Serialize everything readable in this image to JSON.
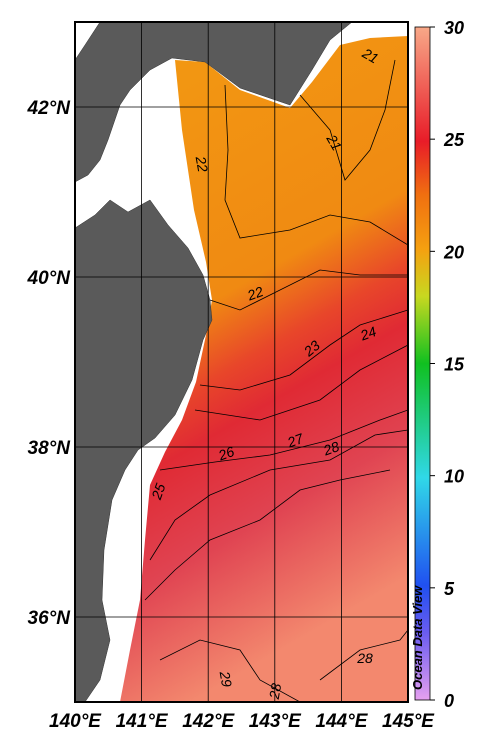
{
  "map": {
    "lon_range": [
      140,
      145
    ],
    "lat_range": [
      35,
      43
    ],
    "xticks": [
      {
        "value": 140,
        "label": "140°E"
      },
      {
        "value": 141,
        "label": "141°E"
      },
      {
        "value": 142,
        "label": "142°E"
      },
      {
        "value": 143,
        "label": "143°E"
      },
      {
        "value": 144,
        "label": "144°E"
      },
      {
        "value": 145,
        "label": "145°E"
      }
    ],
    "yticks": [
      {
        "value": 36,
        "label": "36°N"
      },
      {
        "value": 38,
        "label": "38°N"
      },
      {
        "value": 40,
        "label": "40°N"
      },
      {
        "value": 42,
        "label": "42°N"
      }
    ],
    "colorbar": {
      "lim": [
        0,
        30
      ],
      "ticks": [
        0,
        5,
        10,
        15,
        20,
        25,
        30
      ]
    },
    "contour_labels": [
      21,
      21,
      22,
      22,
      23,
      24,
      25,
      26,
      27,
      28,
      28,
      29,
      28
    ],
    "watermark": "Ocean Data View"
  }
}
